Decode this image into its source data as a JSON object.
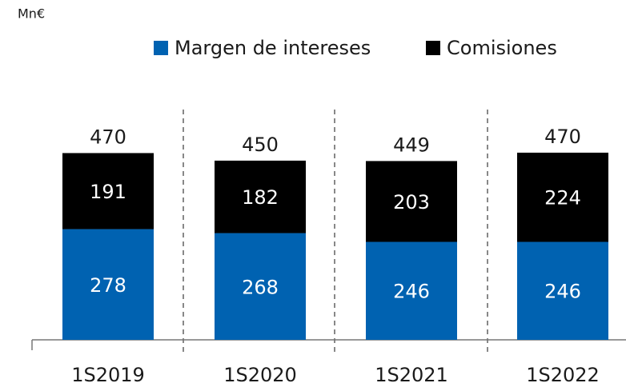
{
  "chart_data": {
    "type": "stacked_bar",
    "unit_label": "Mn€",
    "categories": [
      "1S2019",
      "1S2020",
      "1S2021",
      "1S2022"
    ],
    "series": [
      {
        "name": "Margen de intereses",
        "color": "#0062b1",
        "values": [
          278,
          268,
          246,
          246
        ]
      },
      {
        "name": "Comisiones",
        "color": "#000000",
        "values": [
          191,
          182,
          203,
          224
        ]
      }
    ],
    "totals": [
      470,
      450,
      449,
      470
    ],
    "ylim": [
      0,
      500
    ],
    "legend": "top"
  }
}
